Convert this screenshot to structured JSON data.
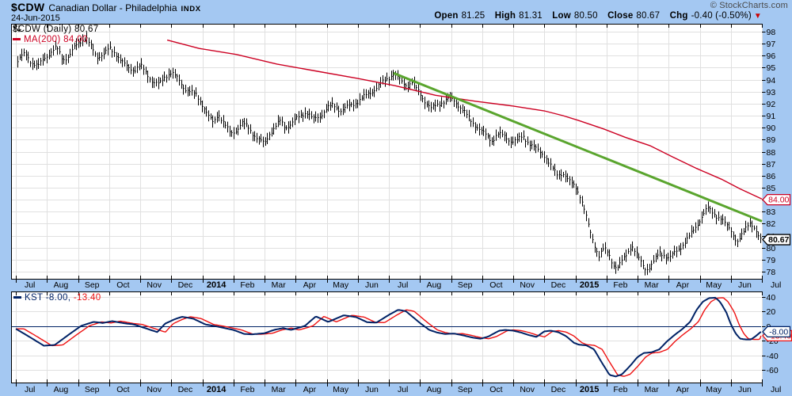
{
  "header": {
    "symbol": "$CDW",
    "name": "Canadian Dollar - Philadelphia",
    "exchange": "INDX",
    "date": "24-Jun-2015",
    "copyright": "© StockCharts.com",
    "quote": [
      {
        "label": "Open",
        "value": "81.25"
      },
      {
        "label": "High",
        "value": "81.31"
      },
      {
        "label": "Low",
        "value": "80.50"
      },
      {
        "label": "Close",
        "value": "80.67"
      },
      {
        "label": "Chg",
        "value": "-0.40 (-0.50%)"
      }
    ],
    "change_direction": "down"
  },
  "main_panel": {
    "legend_symbol": "$CDW (Daily) 80.67",
    "legend_ma": "MA(200) 84.00"
  },
  "kst_panel": {
    "legend_kst": "KST -8.00,",
    "legend_signal": "-13.40"
  },
  "chart_data": {
    "type": "ohlc",
    "title": "$CDW Canadian Dollar - Philadelphia INDX (Daily)",
    "x_tick_labels": [
      "Jul",
      "Aug",
      "Sep",
      "Oct",
      "Nov",
      "Dec",
      "2014",
      "Feb",
      "Mar",
      "Apr",
      "May",
      "Jun",
      "Jul",
      "Aug",
      "Sep",
      "Oct",
      "Nov",
      "Dec",
      "2015",
      "Feb",
      "Mar",
      "Apr",
      "May",
      "Jun",
      "Jul"
    ],
    "x_range_months": 24,
    "y_ticks": [
      98,
      97,
      96,
      95,
      94,
      93,
      92,
      91,
      90,
      89,
      88,
      87,
      86,
      85,
      84,
      83,
      82,
      81,
      80,
      79,
      78
    ],
    "ylim": [
      77.4,
      98.65
    ],
    "last_close": 80.67,
    "close_tag": "80.67",
    "ma_last": 84.0,
    "ma_tag": "84.00",
    "price_path": [
      [
        0,
        95.3
      ],
      [
        0.15,
        95.9
      ],
      [
        0.3,
        96.2
      ],
      [
        0.5,
        95.4
      ],
      [
        0.7,
        95.1
      ],
      [
        0.9,
        95.8
      ],
      [
        1.1,
        96.2
      ],
      [
        1.3,
        96.7
      ],
      [
        1.5,
        95.7
      ],
      [
        1.7,
        95.9
      ],
      [
        1.9,
        96.8
      ],
      [
        2.1,
        97.3
      ],
      [
        2.25,
        97.5
      ],
      [
        2.45,
        96.6
      ],
      [
        2.6,
        95.9
      ],
      [
        2.8,
        96.1
      ],
      [
        3.0,
        96.6
      ],
      [
        3.2,
        96.2
      ],
      [
        3.4,
        95.5
      ],
      [
        3.6,
        95.0
      ],
      [
        3.8,
        94.8
      ],
      [
        4.0,
        95.2
      ],
      [
        4.2,
        94.5
      ],
      [
        4.4,
        93.8
      ],
      [
        4.6,
        93.6
      ],
      [
        4.8,
        94.3
      ],
      [
        5.0,
        94.6
      ],
      [
        5.2,
        94.1
      ],
      [
        5.4,
        93.3
      ],
      [
        5.6,
        93.0
      ],
      [
        5.8,
        92.7
      ],
      [
        6.0,
        91.9
      ],
      [
        6.2,
        90.9
      ],
      [
        6.35,
        90.4
      ],
      [
        6.5,
        91.2
      ],
      [
        6.7,
        90.3
      ],
      [
        6.9,
        89.5
      ],
      [
        7.1,
        89.8
      ],
      [
        7.25,
        90.4
      ],
      [
        7.45,
        90.1
      ],
      [
        7.65,
        89.4
      ],
      [
        7.85,
        88.9
      ],
      [
        8.0,
        88.7
      ],
      [
        8.15,
        89.5
      ],
      [
        8.35,
        90.1
      ],
      [
        8.5,
        90.6
      ],
      [
        8.65,
        90.0
      ],
      [
        8.85,
        90.3
      ],
      [
        9.0,
        90.7
      ],
      [
        9.2,
        91.1
      ],
      [
        9.35,
        91.3
      ],
      [
        9.55,
        90.7
      ],
      [
        9.75,
        90.9
      ],
      [
        10.0,
        91.6
      ],
      [
        10.2,
        91.9
      ],
      [
        10.45,
        91.4
      ],
      [
        10.7,
        91.8
      ],
      [
        10.95,
        92.1
      ],
      [
        11.2,
        92.6
      ],
      [
        11.5,
        93.1
      ],
      [
        11.75,
        93.7
      ],
      [
        12.0,
        94.2
      ],
      [
        12.15,
        94.5
      ],
      [
        12.3,
        94.1
      ],
      [
        12.45,
        93.7
      ],
      [
        12.6,
        93.5
      ],
      [
        12.75,
        93.8
      ],
      [
        12.95,
        93.0
      ],
      [
        13.15,
        92.2
      ],
      [
        13.35,
        91.6
      ],
      [
        13.55,
        91.9
      ],
      [
        13.75,
        92.2
      ],
      [
        13.95,
        92.5
      ],
      [
        14.15,
        92.1
      ],
      [
        14.4,
        91.4
      ],
      [
        14.65,
        90.5
      ],
      [
        14.9,
        89.9
      ],
      [
        15.1,
        89.4
      ],
      [
        15.3,
        88.9
      ],
      [
        15.5,
        89.5
      ],
      [
        15.7,
        89.3
      ],
      [
        15.9,
        88.9
      ],
      [
        16.1,
        88.9
      ],
      [
        16.3,
        89.3
      ],
      [
        16.5,
        88.7
      ],
      [
        16.75,
        88.2
      ],
      [
        17.0,
        87.7
      ],
      [
        17.2,
        86.8
      ],
      [
        17.4,
        86.1
      ],
      [
        17.6,
        86.2
      ],
      [
        17.8,
        85.5
      ],
      [
        18.0,
        85.1
      ],
      [
        18.15,
        84.3
      ],
      [
        18.3,
        83.0
      ],
      [
        18.45,
        81.5
      ],
      [
        18.6,
        80.3
      ],
      [
        18.75,
        79.3
      ],
      [
        18.9,
        79.9
      ],
      [
        19.05,
        79.6
      ],
      [
        19.2,
        78.6
      ],
      [
        19.35,
        78.3
      ],
      [
        19.5,
        78.9
      ],
      [
        19.65,
        79.5
      ],
      [
        19.8,
        80.2
      ],
      [
        19.95,
        79.5
      ],
      [
        20.1,
        78.8
      ],
      [
        20.25,
        78.2
      ],
      [
        20.4,
        78.4
      ],
      [
        20.55,
        79.0
      ],
      [
        20.7,
        79.6
      ],
      [
        20.85,
        79.4
      ],
      [
        21.0,
        79.1
      ],
      [
        21.2,
        79.6
      ],
      [
        21.4,
        80.1
      ],
      [
        21.6,
        80.7
      ],
      [
        21.8,
        81.5
      ],
      [
        21.95,
        82.1
      ],
      [
        22.1,
        82.7
      ],
      [
        22.25,
        83.3
      ],
      [
        22.4,
        83.0
      ],
      [
        22.55,
        82.6
      ],
      [
        22.7,
        82.3
      ],
      [
        22.85,
        81.9
      ],
      [
        23.0,
        81.5
      ],
      [
        23.1,
        80.9
      ],
      [
        23.2,
        80.4
      ],
      [
        23.35,
        81.0
      ],
      [
        23.5,
        81.8
      ],
      [
        23.6,
        82.2
      ],
      [
        23.75,
        81.6
      ],
      [
        23.85,
        81.0
      ],
      [
        23.95,
        80.67
      ]
    ],
    "ma200": [
      [
        4.87,
        97.3
      ],
      [
        5.9,
        96.6
      ],
      [
        7.1,
        96.1
      ],
      [
        8.4,
        95.3
      ],
      [
        9.7,
        94.7
      ],
      [
        11.0,
        94.1
      ],
      [
        12.2,
        93.5
      ],
      [
        13.5,
        92.7
      ],
      [
        14.8,
        92.2
      ],
      [
        16.0,
        91.8
      ],
      [
        17.0,
        91.4
      ],
      [
        17.6,
        91.0
      ],
      [
        18.1,
        90.6
      ],
      [
        18.9,
        89.9
      ],
      [
        19.6,
        89.2
      ],
      [
        20.4,
        88.5
      ],
      [
        21.1,
        87.6
      ],
      [
        21.9,
        86.6
      ],
      [
        22.7,
        85.7
      ],
      [
        23.3,
        84.9
      ],
      [
        24.0,
        84.05
      ]
    ],
    "trendline": {
      "from": [
        12.15,
        94.55
      ],
      "to": [
        24,
        82.2
      ]
    },
    "kst": {
      "y_ticks": [
        40,
        20,
        0,
        -20,
        -40,
        -60
      ],
      "ylim": [
        -77,
        47
      ],
      "kst_last": -8.0,
      "kst_tag": "-8.00",
      "signal_last": -13.4,
      "signal_tag": "-13.40",
      "signal_lag_months": 0.26,
      "kst_path": [
        [
          0,
          -4
        ],
        [
          0.4,
          -14
        ],
        [
          0.9,
          -27
        ],
        [
          1.25,
          -26
        ],
        [
          1.7,
          -12
        ],
        [
          2.1,
          0
        ],
        [
          2.5,
          5.5
        ],
        [
          2.8,
          4
        ],
        [
          3.1,
          6.5
        ],
        [
          3.5,
          3.5
        ],
        [
          3.8,
          2
        ],
        [
          4.3,
          -5
        ],
        [
          4.55,
          -8.5
        ],
        [
          4.8,
          3
        ],
        [
          5.1,
          9
        ],
        [
          5.35,
          12.5
        ],
        [
          5.7,
          10
        ],
        [
          6.1,
          2
        ],
        [
          6.5,
          -1
        ],
        [
          7.0,
          -5.5
        ],
        [
          7.35,
          -11
        ],
        [
          7.6,
          -11.5
        ],
        [
          8.0,
          -10
        ],
        [
          8.3,
          -5.5
        ],
        [
          8.6,
          -3
        ],
        [
          8.85,
          -5.5
        ],
        [
          9.3,
          0
        ],
        [
          9.65,
          13
        ],
        [
          10.05,
          5.5
        ],
        [
          10.55,
          14.5
        ],
        [
          10.95,
          12
        ],
        [
          11.3,
          5
        ],
        [
          11.6,
          4.5
        ],
        [
          12.0,
          15
        ],
        [
          12.3,
          22
        ],
        [
          12.55,
          20
        ],
        [
          13.0,
          4
        ],
        [
          13.3,
          -5.5
        ],
        [
          13.55,
          -9
        ],
        [
          13.8,
          -11
        ],
        [
          14.1,
          -10.5
        ],
        [
          14.35,
          -12.5
        ],
        [
          14.7,
          -16
        ],
        [
          14.95,
          -17.5
        ],
        [
          15.2,
          -14.5
        ],
        [
          15.55,
          -6.5
        ],
        [
          15.75,
          -5.5
        ],
        [
          16.0,
          -6.5
        ],
        [
          16.25,
          -9
        ],
        [
          16.5,
          -12.5
        ],
        [
          16.75,
          -15
        ],
        [
          17.0,
          -7.5
        ],
        [
          17.2,
          -6.5
        ],
        [
          17.45,
          -8.5
        ],
        [
          17.7,
          -14
        ],
        [
          17.95,
          -23
        ],
        [
          18.1,
          -25.5
        ],
        [
          18.35,
          -26.5
        ],
        [
          18.6,
          -32
        ],
        [
          18.85,
          -50
        ],
        [
          19.1,
          -67
        ],
        [
          19.3,
          -69
        ],
        [
          19.5,
          -66
        ],
        [
          19.75,
          -55
        ],
        [
          20.0,
          -42.5
        ],
        [
          20.2,
          -37
        ],
        [
          20.45,
          -36
        ],
        [
          20.7,
          -32
        ],
        [
          20.95,
          -21
        ],
        [
          21.2,
          -12
        ],
        [
          21.45,
          -4
        ],
        [
          21.7,
          6
        ],
        [
          21.9,
          22
        ],
        [
          22.1,
          33
        ],
        [
          22.3,
          38
        ],
        [
          22.5,
          38.5
        ],
        [
          22.65,
          33
        ],
        [
          22.85,
          19
        ],
        [
          23.0,
          2.5
        ],
        [
          23.15,
          -10
        ],
        [
          23.3,
          -17.5
        ],
        [
          23.5,
          -18.5
        ],
        [
          23.65,
          -18.5
        ],
        [
          23.8,
          -14
        ],
        [
          23.97,
          -8
        ]
      ]
    },
    "colors": {
      "background": "#a4c8f2",
      "plot_bg": "#ffffff",
      "grid": "#e0e0e0",
      "bars": "#000000",
      "ma200": "#cc0022",
      "trendline": "#5aa52e",
      "kst_line": "#002266",
      "kst_signal": "#ee1111",
      "close_tag_border": "#000000",
      "ma_tag_border": "#cc0022"
    }
  }
}
